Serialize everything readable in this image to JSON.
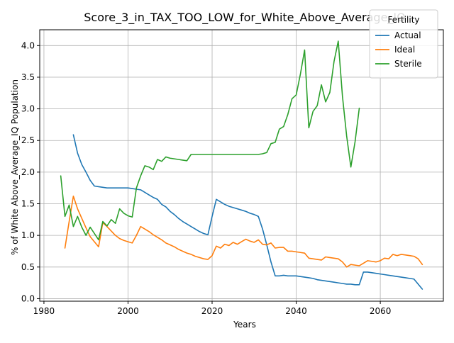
{
  "chart_data": {
    "type": "line",
    "title": "Score_3_in_TAX_TOO_LOW_for_White_Above_Average_IQ",
    "xlabel": "Years",
    "ylabel": "% of White Above_Average_IQ Population",
    "xlim": [
      1979,
      2075
    ],
    "ylim": [
      -0.04,
      4.25
    ],
    "xticks": [
      1980,
      2000,
      2020,
      2040,
      2060
    ],
    "yticks": [
      0.0,
      0.5,
      1.0,
      1.5,
      2.0,
      2.5,
      3.0,
      3.5,
      4.0
    ],
    "grid": true,
    "legend": {
      "title": "Fertility",
      "placement": "top-right"
    },
    "series": [
      {
        "name": "Actual",
        "color": "#1f77b4",
        "x": [
          1987,
          1988,
          1989,
          1990,
          1991,
          1992,
          1993,
          1994,
          1995,
          1996,
          1997,
          1998,
          1999,
          2000,
          2001,
          2002,
          2003,
          2004,
          2005,
          2006,
          2007,
          2008,
          2009,
          2010,
          2011,
          2012,
          2013,
          2014,
          2015,
          2016,
          2017,
          2018,
          2019,
          2020,
          2021,
          2022,
          2023,
          2024,
          2025,
          2026,
          2027,
          2028,
          2029,
          2030,
          2031,
          2032,
          2033,
          2034,
          2035,
          2036,
          2037,
          2038,
          2039,
          2040,
          2041,
          2042,
          2043,
          2044,
          2045,
          2046,
          2047,
          2048,
          2049,
          2050,
          2051,
          2052,
          2053,
          2054,
          2055,
          2056,
          2057,
          2058,
          2059,
          2060,
          2061,
          2062,
          2063,
          2064,
          2065,
          2066,
          2067,
          2068,
          2069,
          2070
        ],
        "y": [
          2.59,
          2.3,
          2.12,
          2.0,
          1.87,
          1.78,
          1.77,
          1.76,
          1.75,
          1.75,
          1.75,
          1.75,
          1.75,
          1.75,
          1.74,
          1.73,
          1.72,
          1.68,
          1.64,
          1.6,
          1.57,
          1.49,
          1.45,
          1.38,
          1.33,
          1.27,
          1.22,
          1.18,
          1.14,
          1.1,
          1.06,
          1.03,
          1.01,
          1.3,
          1.57,
          1.53,
          1.49,
          1.46,
          1.44,
          1.42,
          1.4,
          1.38,
          1.35,
          1.33,
          1.3,
          1.1,
          0.85,
          0.58,
          0.36,
          0.36,
          0.37,
          0.36,
          0.36,
          0.36,
          0.35,
          0.34,
          0.33,
          0.32,
          0.3,
          0.29,
          0.28,
          0.27,
          0.26,
          0.25,
          0.24,
          0.23,
          0.23,
          0.22,
          0.22,
          0.42,
          0.42,
          0.41,
          0.4,
          0.39,
          0.38,
          0.37,
          0.36,
          0.35,
          0.34,
          0.33,
          0.32,
          0.31,
          0.23,
          0.15
        ]
      },
      {
        "name": "Ideal",
        "color": "#ff7f0e",
        "x": [
          1985,
          1986,
          1987,
          1988,
          1989,
          1990,
          1991,
          1992,
          1993,
          1994,
          1995,
          1996,
          1997,
          1998,
          1999,
          2000,
          2001,
          2002,
          2003,
          2004,
          2005,
          2006,
          2007,
          2008,
          2009,
          2010,
          2011,
          2012,
          2013,
          2014,
          2015,
          2016,
          2017,
          2018,
          2019,
          2020,
          2021,
          2022,
          2023,
          2024,
          2025,
          2026,
          2027,
          2028,
          2029,
          2030,
          2031,
          2032,
          2033,
          2034,
          2035,
          2036,
          2037,
          2038,
          2039,
          2040,
          2041,
          2042,
          2043,
          2044,
          2045,
          2046,
          2047,
          2048,
          2049,
          2050,
          2051,
          2052,
          2053,
          2054,
          2055,
          2056,
          2057,
          2058,
          2059,
          2060,
          2061,
          2062,
          2063,
          2064,
          2065,
          2066,
          2067,
          2068,
          2069,
          2070
        ],
        "y": [
          0.8,
          1.22,
          1.62,
          1.42,
          1.27,
          1.12,
          0.98,
          0.9,
          0.82,
          1.2,
          1.14,
          1.07,
          1.0,
          0.95,
          0.92,
          0.9,
          0.88,
          1.0,
          1.14,
          1.1,
          1.06,
          1.01,
          0.97,
          0.93,
          0.88,
          0.85,
          0.82,
          0.78,
          0.75,
          0.72,
          0.7,
          0.67,
          0.65,
          0.63,
          0.62,
          0.68,
          0.83,
          0.8,
          0.86,
          0.84,
          0.89,
          0.86,
          0.9,
          0.94,
          0.91,
          0.89,
          0.93,
          0.86,
          0.85,
          0.88,
          0.8,
          0.81,
          0.81,
          0.75,
          0.75,
          0.74,
          0.73,
          0.72,
          0.64,
          0.63,
          0.62,
          0.61,
          0.66,
          0.65,
          0.64,
          0.63,
          0.58,
          0.5,
          0.54,
          0.53,
          0.52,
          0.56,
          0.6,
          0.59,
          0.58,
          0.6,
          0.64,
          0.63,
          0.7,
          0.68,
          0.7,
          0.69,
          0.68,
          0.67,
          0.63,
          0.54
        ]
      },
      {
        "name": "Sterile",
        "color": "#2ca02c",
        "x": [
          1984,
          1985,
          1986,
          1987,
          1988,
          1989,
          1990,
          1991,
          1992,
          1993,
          1994,
          1995,
          1996,
          1997,
          1998,
          1999,
          2000,
          2001,
          2002,
          2003,
          2004,
          2005,
          2006,
          2007,
          2008,
          2009,
          2010,
          2011,
          2012,
          2013,
          2014,
          2015,
          2016,
          2017,
          2018,
          2019,
          2020,
          2021,
          2022,
          2023,
          2024,
          2025,
          2026,
          2027,
          2028,
          2029,
          2030,
          2031,
          2032,
          2033,
          2034,
          2035,
          2036,
          2037,
          2038,
          2039,
          2040,
          2041,
          2042,
          2043,
          2044,
          2045,
          2046,
          2047,
          2048,
          2049,
          2050,
          2051,
          2052,
          2053,
          2054,
          2055
        ],
        "y": [
          1.94,
          1.3,
          1.48,
          1.14,
          1.3,
          1.13,
          1.0,
          1.13,
          1.03,
          0.93,
          1.22,
          1.15,
          1.25,
          1.19,
          1.42,
          1.35,
          1.31,
          1.29,
          1.75,
          1.94,
          2.1,
          2.08,
          2.04,
          2.2,
          2.17,
          2.24,
          2.22,
          2.21,
          2.2,
          2.19,
          2.18,
          2.28,
          2.28,
          2.28,
          2.28,
          2.28,
          2.28,
          2.28,
          2.28,
          2.28,
          2.28,
          2.28,
          2.28,
          2.28,
          2.28,
          2.28,
          2.28,
          2.28,
          2.29,
          2.31,
          2.45,
          2.47,
          2.68,
          2.72,
          2.91,
          3.16,
          3.22,
          3.55,
          3.93,
          2.7,
          2.96,
          3.05,
          3.38,
          3.11,
          3.26,
          3.75,
          4.07,
          3.2,
          2.57,
          2.08,
          2.48,
          3.01
        ]
      }
    ]
  }
}
